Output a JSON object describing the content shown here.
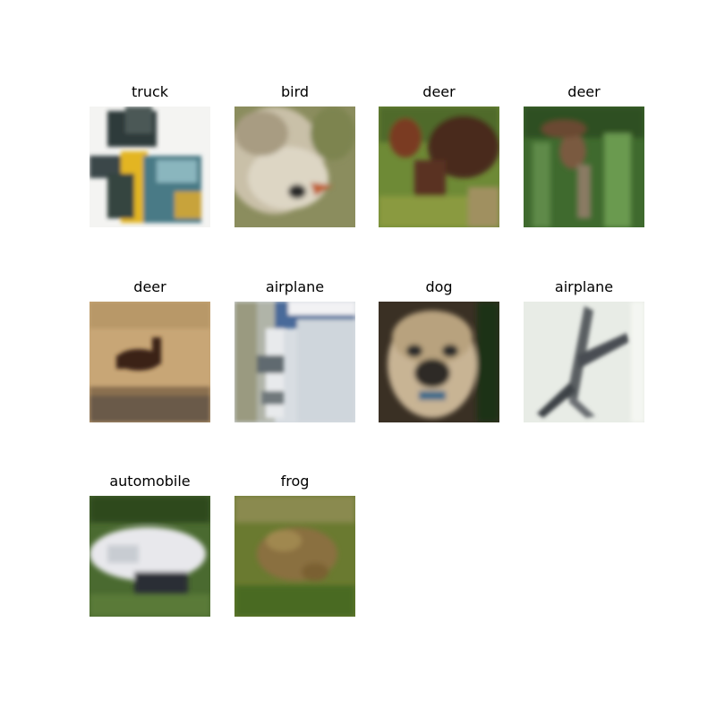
{
  "grid": {
    "images": [
      {
        "label": "truck",
        "subject": "truck-image"
      },
      {
        "label": "bird",
        "subject": "bird-image"
      },
      {
        "label": "deer",
        "subject": "deer-image"
      },
      {
        "label": "deer",
        "subject": "deer-image"
      },
      {
        "label": "deer",
        "subject": "deer-image"
      },
      {
        "label": "airplane",
        "subject": "airplane-image"
      },
      {
        "label": "dog",
        "subject": "dog-image"
      },
      {
        "label": "airplane",
        "subject": "airplane-image"
      },
      {
        "label": "automobile",
        "subject": "automobile-image"
      },
      {
        "label": "frog",
        "subject": "frog-image"
      }
    ]
  }
}
